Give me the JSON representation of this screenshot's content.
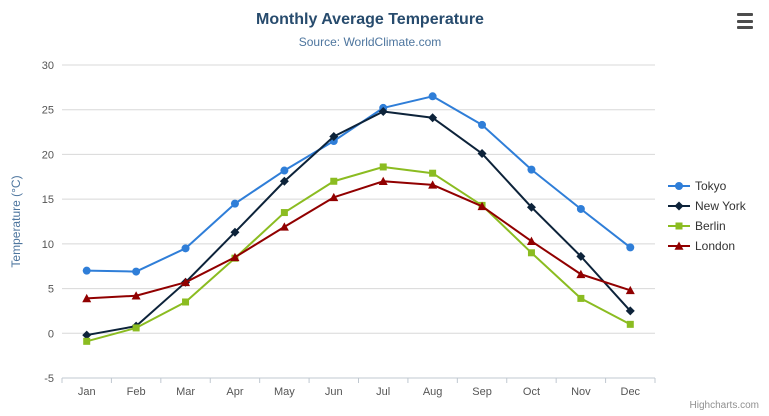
{
  "chart": {
    "title": "Monthly Average Temperature",
    "subtitle": "Source: WorldClimate.com",
    "credits": "Highcharts.com"
  },
  "chart_data": {
    "type": "line",
    "categories": [
      "Jan",
      "Feb",
      "Mar",
      "Apr",
      "May",
      "Jun",
      "Jul",
      "Aug",
      "Sep",
      "Oct",
      "Nov",
      "Dec"
    ],
    "xlabel": "",
    "ylabel": "Temperature (°C)",
    "ylim": [
      -5,
      30
    ],
    "ytick_step": 5,
    "grid": true,
    "legend_position": "right",
    "colors": {
      "tokyo": "#2f7ed8",
      "new_york": "#0d233a",
      "berlin": "#8bbc21",
      "london": "#910000"
    },
    "series": [
      {
        "name": "Tokyo",
        "color": "#2f7ed8",
        "marker": "circle",
        "values": [
          7.0,
          6.9,
          9.5,
          14.5,
          18.2,
          21.5,
          25.2,
          26.5,
          23.3,
          18.3,
          13.9,
          9.6
        ]
      },
      {
        "name": "New York",
        "color": "#0d233a",
        "marker": "diamond",
        "values": [
          -0.2,
          0.8,
          5.7,
          11.3,
          17.0,
          22.0,
          24.8,
          24.1,
          20.1,
          14.1,
          8.6,
          2.5
        ]
      },
      {
        "name": "Berlin",
        "color": "#8bbc21",
        "marker": "square",
        "values": [
          -0.9,
          0.6,
          3.5,
          8.4,
          13.5,
          17.0,
          18.6,
          17.9,
          14.3,
          9.0,
          3.9,
          1.0
        ]
      },
      {
        "name": "London",
        "color": "#910000",
        "marker": "triangle",
        "values": [
          3.9,
          4.2,
          5.7,
          8.5,
          11.9,
          15.2,
          17.0,
          16.6,
          14.2,
          10.3,
          6.6,
          4.8
        ]
      }
    ]
  }
}
